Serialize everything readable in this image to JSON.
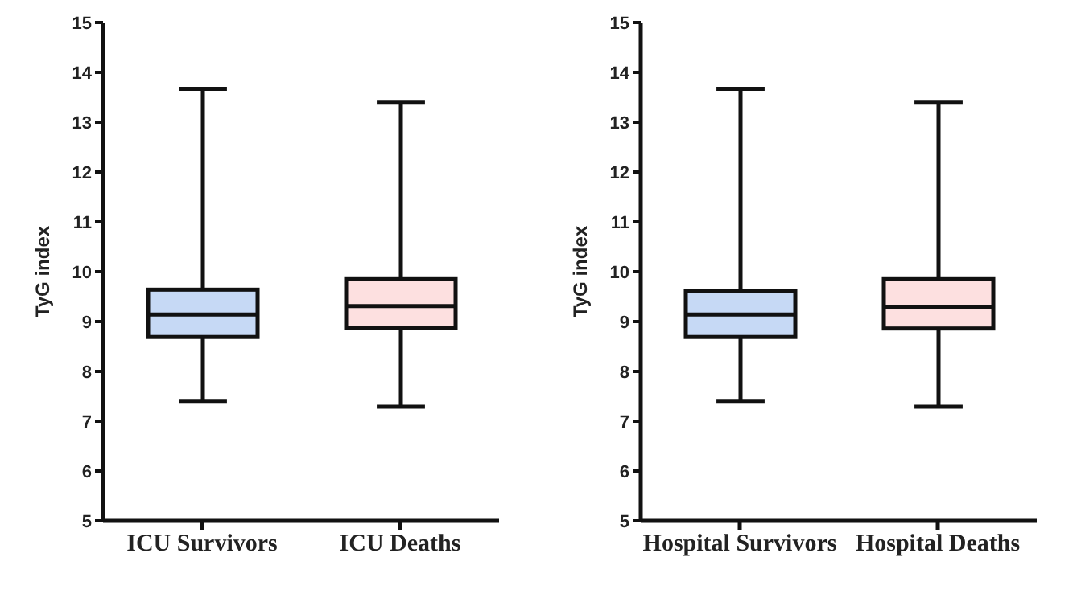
{
  "chart_data": [
    {
      "type": "box",
      "categories": [
        "ICU Survivors",
        "ICU Deaths"
      ],
      "ylabel": "TyG index",
      "ylim": [
        5,
        15
      ],
      "yticks": [
        5,
        6,
        7,
        8,
        9,
        10,
        11,
        12,
        13,
        14,
        15
      ],
      "colors": [
        "#c6d9f5",
        "#fde0e0"
      ],
      "grid": false,
      "boxes": [
        {
          "low": 7.39,
          "q1": 8.69,
          "median": 9.14,
          "q3": 9.64,
          "high": 13.67
        },
        {
          "low": 7.29,
          "q1": 8.87,
          "median": 9.31,
          "q3": 9.85,
          "high": 13.39
        }
      ]
    },
    {
      "type": "box",
      "categories": [
        "Hospital Survivors",
        "Hospital Deaths"
      ],
      "ylabel": "TyG index",
      "ylim": [
        5,
        15
      ],
      "yticks": [
        5,
        6,
        7,
        8,
        9,
        10,
        11,
        12,
        13,
        14,
        15
      ],
      "colors": [
        "#c6d9f5",
        "#fde0e0"
      ],
      "grid": false,
      "boxes": [
        {
          "low": 7.39,
          "q1": 8.69,
          "median": 9.14,
          "q3": 9.61,
          "high": 13.67
        },
        {
          "low": 7.29,
          "q1": 8.86,
          "median": 9.29,
          "q3": 9.85,
          "high": 13.39
        }
      ]
    }
  ]
}
